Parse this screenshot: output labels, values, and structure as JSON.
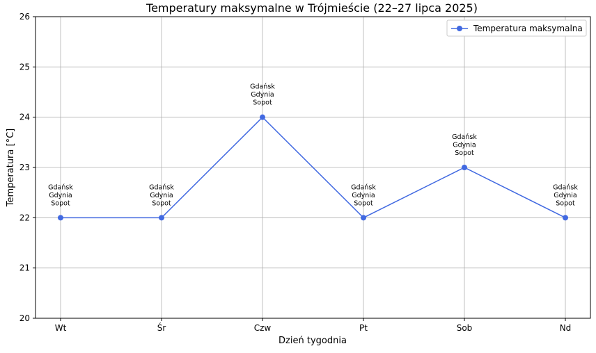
{
  "chart_data": {
    "type": "line",
    "title": "Temperatury maksymalne w Trójmieście (22–27 lipca 2025)",
    "xlabel": "Dzień tygodnia",
    "ylabel": "Temperatura [°C]",
    "categories": [
      "Wt",
      "Śr",
      "Czw",
      "Pt",
      "Sob",
      "Nd"
    ],
    "series": [
      {
        "name": "Temperatura maksymalna",
        "values": [
          22,
          22,
          24,
          22,
          23,
          22
        ],
        "color": "#4169e1",
        "marker": "circle"
      }
    ],
    "point_annotations": [
      "Gdańsk\nGdynia\nSopot",
      "Gdańsk\nGdynia\nSopot",
      "Gdańsk\nGdynia\nSopot",
      "Gdańsk\nGdynia\nSopot",
      "Gdańsk\nGdynia\nSopot",
      "Gdańsk\nGdynia\nSopot"
    ],
    "ylim": [
      20,
      26
    ],
    "yticks": [
      20,
      21,
      22,
      23,
      24,
      25,
      26
    ],
    "grid": true,
    "legend_position": "top-right"
  }
}
